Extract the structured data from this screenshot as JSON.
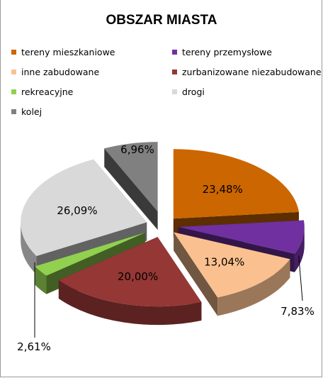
{
  "chart_data": {
    "type": "pie",
    "variant": "3d-exploded",
    "title": "OBSZAR MIASTA",
    "legend_position": "top",
    "slices": [
      {
        "name": "tereny mieszkaniowe",
        "value": 23.48,
        "label": "23,48%",
        "color": "#cc6600"
      },
      {
        "name": "tereny przemysłowe",
        "value": 7.83,
        "label": "7,83%",
        "color": "#7030a0"
      },
      {
        "name": "inne zabudowane",
        "value": 13.04,
        "label": "13,04%",
        "color": "#fac090"
      },
      {
        "name": "zurbanizowane niezabudowane",
        "value": 20.0,
        "label": "20,00%",
        "color": "#953735"
      },
      {
        "name": "rekreacyjne",
        "value": 2.61,
        "label": "2,61%",
        "color": "#92d050"
      },
      {
        "name": "drogi",
        "value": 26.09,
        "label": "26,09%",
        "color": "#d9d9d9"
      },
      {
        "name": "kolej",
        "value": 6.96,
        "label": "6,96%",
        "color": "#808080"
      }
    ]
  }
}
